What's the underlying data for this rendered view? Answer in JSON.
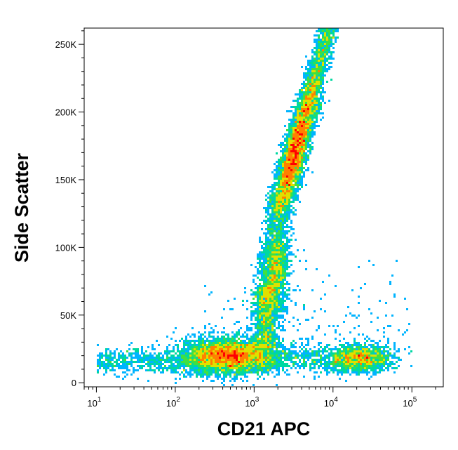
{
  "chart_data": {
    "type": "heatmap",
    "subtype": "flow-cytometry-density-dot-plot",
    "title": "",
    "xlabel": "CD21 APC",
    "ylabel": "Side Scatter",
    "x_scale": "log",
    "y_scale": "linear",
    "xlim": [
      7,
      250000
    ],
    "ylim": [
      -3000,
      262000
    ],
    "x_ticks": [
      {
        "value": 10,
        "base": "10",
        "exp": "1"
      },
      {
        "value": 100,
        "base": "10",
        "exp": "2"
      },
      {
        "value": 1000,
        "base": "10",
        "exp": "3"
      },
      {
        "value": 10000,
        "base": "10",
        "exp": "4"
      },
      {
        "value": 100000,
        "base": "10",
        "exp": "5"
      }
    ],
    "y_ticks": [
      {
        "value": 0,
        "label": "0"
      },
      {
        "value": 50000,
        "label": "50K"
      },
      {
        "value": 100000,
        "label": "100K"
      },
      {
        "value": 150000,
        "label": "150K"
      },
      {
        "value": 200000,
        "label": "200K"
      },
      {
        "value": 250000,
        "label": "250K"
      }
    ],
    "grid": false,
    "colormap": [
      "#0000ff",
      "#00b4ff",
      "#00d8a0",
      "#40e040",
      "#e0e000",
      "#ff8000",
      "#ff0000"
    ],
    "populations": [
      {
        "x_center": 500,
        "x_log_spread": 0.3,
        "y_center": 20000,
        "y_spread": 6500,
        "relative_density": 1.0
      },
      {
        "x_center": 3300,
        "x_log_spread": 0.075,
        "y_center": 170000,
        "y_spread": 28000,
        "relative_density": 1.8
      },
      {
        "x_center": 1800,
        "x_log_spread": 0.09,
        "y_center": 80000,
        "y_spread": 17000,
        "relative_density": 0.5
      },
      {
        "x_center": 22000,
        "x_log_spread": 0.2,
        "y_center": 18000,
        "y_spread": 5000,
        "relative_density": 0.4
      }
    ]
  }
}
